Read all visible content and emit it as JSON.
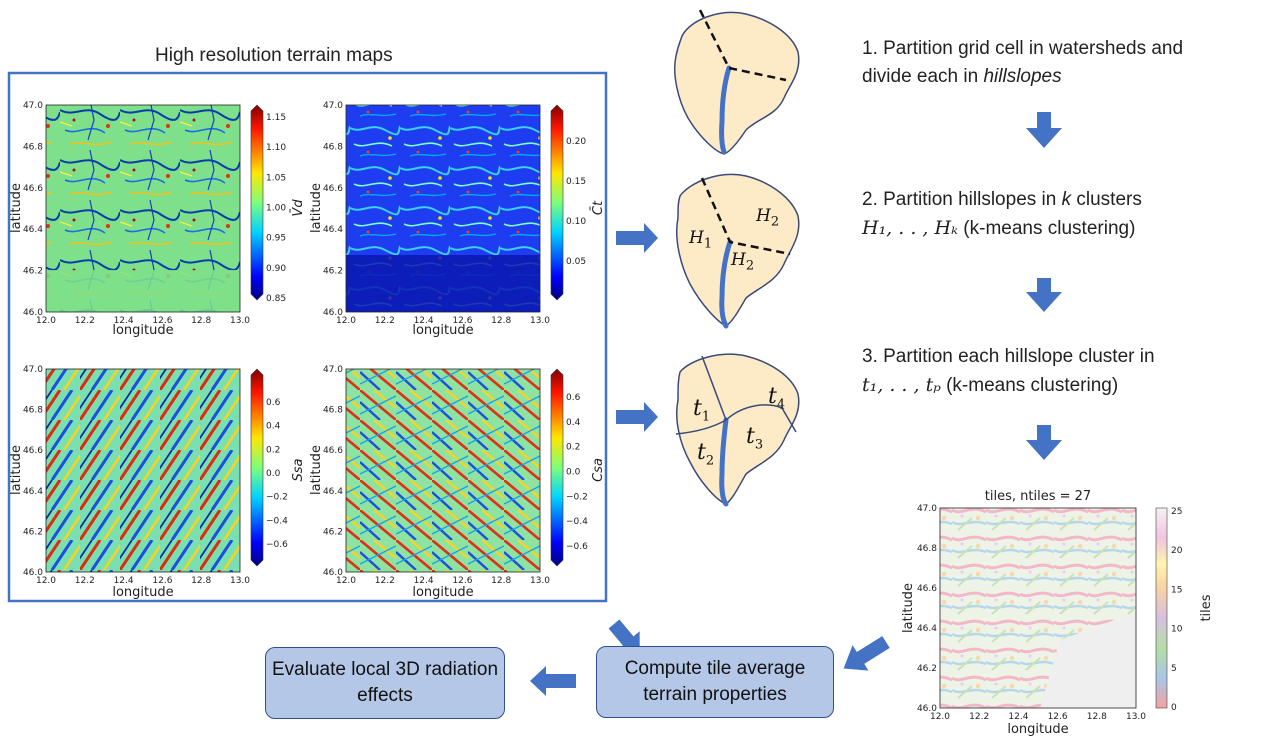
{
  "header": "High resolution terrain maps",
  "maps": [
    {
      "id": "vd",
      "colorbar_label": "V̄d",
      "colorbar_ticks": [
        "1.15",
        "1.10",
        "1.05",
        "1.00",
        "0.95",
        "0.90",
        "0.85"
      ],
      "ylabel": "latitude",
      "xlabel": "longitude"
    },
    {
      "id": "ct",
      "colorbar_label": "C̄t",
      "colorbar_ticks": [
        "0.20",
        "0.15",
        "0.10",
        "0.05"
      ],
      "ylabel": "latitude",
      "xlabel": "longitude"
    },
    {
      "id": "ssa",
      "colorbar_label": "Ssa",
      "colorbar_ticks": [
        "0.6",
        "0.4",
        "0.2",
        "0.0",
        "−0.2",
        "−0.4",
        "−0.6"
      ],
      "ylabel": "latitude",
      "xlabel": "longitude"
    },
    {
      "id": "csa",
      "colorbar_label": "Csa",
      "colorbar_ticks": [
        "0.6",
        "0.4",
        "0.2",
        "0.0",
        "−0.2",
        "−0.4",
        "−0.6"
      ],
      "ylabel": "latitude",
      "xlabel": "longitude"
    }
  ],
  "lat_ticks": [
    "47.0",
    "46.8",
    "46.6",
    "46.4",
    "46.2",
    "46.0"
  ],
  "lon_ticks": [
    "12.0",
    "12.2",
    "12.4",
    "12.6",
    "12.8",
    "13.0"
  ],
  "watershed_labels": {
    "h1": "H",
    "h1_sub": "1",
    "h2a": "H",
    "h2a_sub": "2",
    "h2b": "H",
    "h2b_sub": "2",
    "t1": "t",
    "t1_sub": "1",
    "t2": "t",
    "t2_sub": "2",
    "t3": "t",
    "t3_sub": "3",
    "t4": "t",
    "t4_sub": "4"
  },
  "steps": {
    "s1_line1": "1. Partition grid cell in watersheds and",
    "s1_line2_a": "divide each in ",
    "s1_line2_b": "hillslopes",
    "s2_line1_a": "2. Partition hillslopes in ",
    "s2_line1_b": "k",
    "s2_line1_c": " clusters",
    "s2_line2_math": "H₁, . . , Hₖ",
    "s2_line2_rest": " (k-means clustering)",
    "s3_line1": "3. Partition each hillslope cluster in",
    "s3_line2_math": "t₁, . . , tₚ",
    "s3_line2_rest": " (k-means clustering)"
  },
  "tiles_chart": {
    "title": "tiles, ntiles = 27",
    "xlabel": "longitude",
    "ylabel": "latitude",
    "colorbar_label": "tiles",
    "colorbar_ticks": [
      "25",
      "20",
      "15",
      "10",
      "5",
      "0"
    ]
  },
  "boxes": {
    "compute": "Compute tile average terrain properties",
    "evaluate": "Evaluate local 3D radiation effects"
  },
  "colors": {
    "arrow": "#4472c4",
    "box_fill": "#b4c7e7",
    "box_border": "#2f528f",
    "watershed_fill": "#fdebc8",
    "river": "#4472c4",
    "frame": "#4472c4"
  }
}
